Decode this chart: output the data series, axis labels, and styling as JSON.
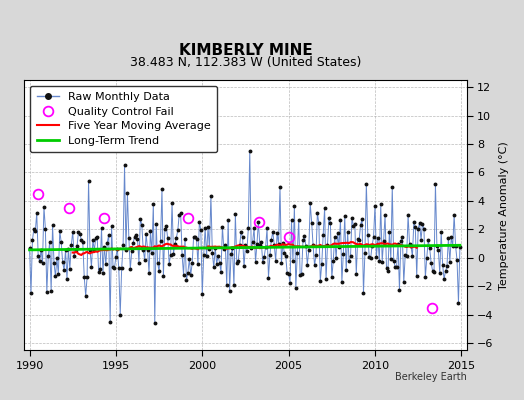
{
  "title": "KIMBERLY MINE",
  "subtitle": "38.483 N, 112.383 W (United States)",
  "ylabel": "Temperature Anomaly (°C)",
  "xlim": [
    1989.7,
    2015.3
  ],
  "ylim": [
    -6.5,
    12.5
  ],
  "yticks": [
    -6,
    -4,
    -2,
    0,
    2,
    4,
    6,
    8,
    10,
    12
  ],
  "xticks": [
    1990,
    1995,
    2000,
    2005,
    2010,
    2015
  ],
  "fig_bg_color": "#d8d8d8",
  "plot_bg_color": "#ffffff",
  "raw_line_color": "#6688cc",
  "raw_marker_color": "#111111",
  "qc_fail_color": "#ff00ff",
  "moving_avg_color": "#ff0000",
  "trend_color": "#00cc00",
  "watermark": "Berkeley Earth",
  "seed": 17,
  "title_fontsize": 11,
  "subtitle_fontsize": 9,
  "legend_fontsize": 8,
  "tick_fontsize": 8
}
